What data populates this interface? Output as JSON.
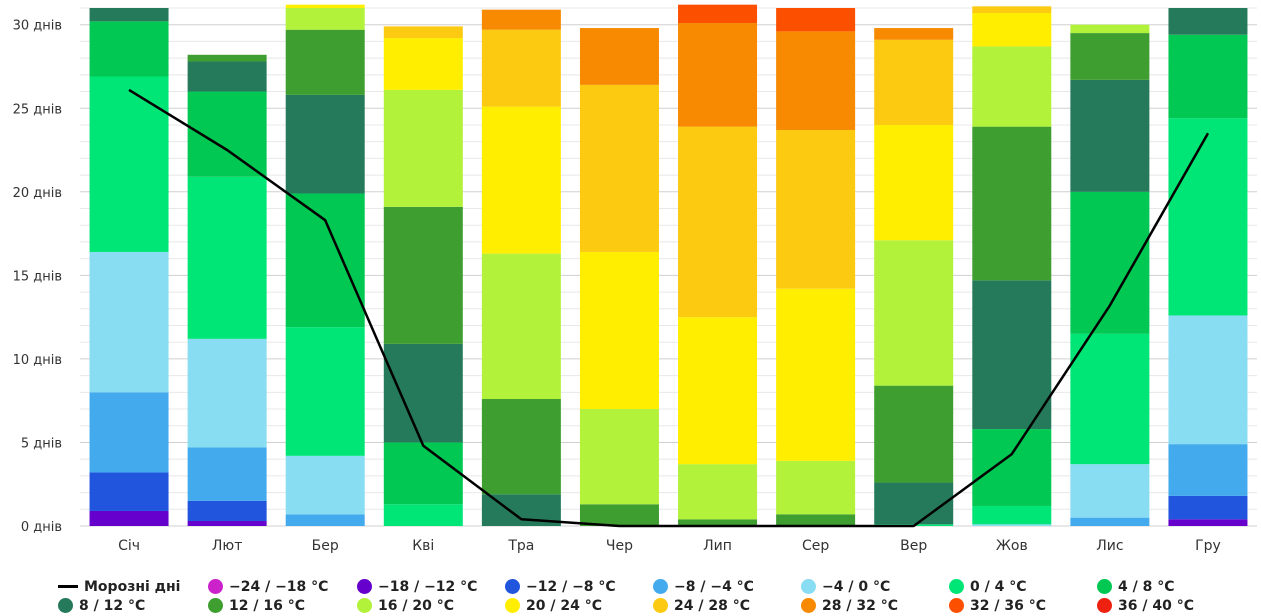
{
  "chart_data": {
    "type": "bar",
    "stacked": true,
    "categories": [
      "Січ",
      "Лют",
      "Бер",
      "Кві",
      "Тра",
      "Чер",
      "Лип",
      "Сер",
      "Вер",
      "Жов",
      "Лис",
      "Гру"
    ],
    "y_unit": "днів",
    "ylim": [
      0,
      31
    ],
    "yticks": [
      0,
      5,
      10,
      15,
      20,
      25,
      30
    ],
    "ytick_labels": [
      "0 днів",
      "5 днів",
      "10 днів",
      "15 днів",
      "20 днів",
      "25 днів",
      "30 днів"
    ],
    "grid": true,
    "legend_position": "bottom",
    "series": [
      {
        "name": "−24 / −18 °C",
        "color": "#cc22cc",
        "values": [
          0,
          0,
          0,
          0,
          0,
          0,
          0,
          0,
          0,
          0,
          0,
          0
        ]
      },
      {
        "name": "−18 / −12 °C",
        "color": "#6600cc",
        "values": [
          0.9,
          0.3,
          0,
          0,
          0,
          0,
          0,
          0,
          0,
          0,
          0,
          0.4
        ]
      },
      {
        "name": "−12 / −8 °C",
        "color": "#2255dd",
        "values": [
          2.3,
          1.2,
          0,
          0,
          0,
          0,
          0,
          0,
          0,
          0,
          0,
          1.4
        ]
      },
      {
        "name": "−8 / −4 °C",
        "color": "#44aaee",
        "values": [
          4.8,
          3.2,
          0.7,
          0,
          0,
          0,
          0,
          0,
          0,
          0,
          0.5,
          3.1
        ]
      },
      {
        "name": "−4 / 0 °C",
        "color": "#88ddf2",
        "values": [
          8.4,
          6.5,
          3.5,
          0,
          0,
          0,
          0,
          0,
          0,
          0.1,
          3.2,
          7.7
        ]
      },
      {
        "name": "0 / 4 °C",
        "color": "#00e676",
        "values": [
          10.5,
          9.7,
          7.7,
          1.3,
          0,
          0,
          0,
          0,
          0.1,
          1.1,
          7.8,
          11.8
        ]
      },
      {
        "name": "4 / 8 °C",
        "color": "#00c853",
        "values": [
          3.3,
          5.1,
          8.0,
          3.7,
          0,
          0,
          0,
          0,
          0,
          4.6,
          8.5,
          5.0
        ]
      },
      {
        "name": "8 / 12 °C",
        "color": "#267a5c",
        "values": [
          0.8,
          1.8,
          5.9,
          5.9,
          1.9,
          0,
          0,
          0,
          2.5,
          8.9,
          6.7,
          1.6
        ]
      },
      {
        "name": "12 / 16 °C",
        "color": "#3f9e30",
        "values": [
          0,
          0.4,
          3.9,
          8.2,
          5.7,
          1.3,
          0.4,
          0.7,
          5.8,
          9.2,
          2.8,
          0
        ]
      },
      {
        "name": "16 / 20 °C",
        "color": "#b2f23a",
        "values": [
          0,
          0,
          1.3,
          7.0,
          8.7,
          5.7,
          3.3,
          3.2,
          8.7,
          4.8,
          0.5,
          0
        ]
      },
      {
        "name": "20 / 24 °C",
        "color": "#ffee00",
        "values": [
          0,
          0,
          0.2,
          3.1,
          8.8,
          9.4,
          8.8,
          10.3,
          6.9,
          2.0,
          0,
          0
        ]
      },
      {
        "name": "24 / 28 °C",
        "color": "#fdca12",
        "values": [
          0,
          0,
          0,
          0.7,
          4.6,
          10.0,
          11.4,
          9.5,
          5.1,
          0.4,
          0,
          0
        ]
      },
      {
        "name": "28 / 32 °C",
        "color": "#f78a00",
        "values": [
          0,
          0,
          0,
          0,
          1.2,
          3.4,
          6.2,
          5.9,
          0.7,
          0,
          0,
          0
        ]
      },
      {
        "name": "32 / 36 °C",
        "color": "#fc5000",
        "values": [
          0,
          0,
          0,
          0,
          0,
          0,
          1.1,
          1.4,
          0,
          0,
          0,
          0
        ]
      },
      {
        "name": "36 / 40 °C",
        "color": "#ee2010",
        "values": [
          0,
          0,
          0,
          0,
          0,
          0,
          0,
          0,
          0,
          0,
          0,
          0
        ]
      }
    ],
    "line_series": {
      "name": "Морозні дні",
      "color": "#000000",
      "values": [
        26.1,
        22.5,
        18.3,
        4.8,
        0.4,
        0,
        0,
        0,
        0,
        4.3,
        13.2,
        23.5
      ]
    }
  }
}
